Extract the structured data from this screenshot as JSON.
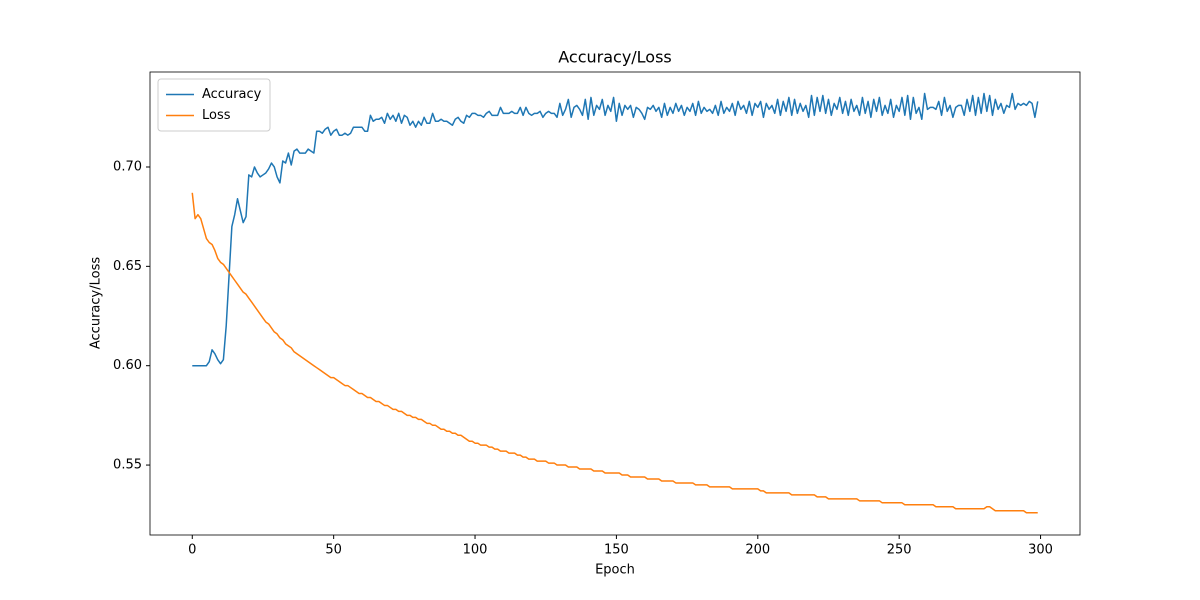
{
  "chart_data": {
    "type": "line",
    "title": "Accuracy/Loss",
    "x_label": "Epoch",
    "y_label": "Accuracy/Loss",
    "x": [
      0,
      1,
      2,
      3,
      4,
      5,
      6,
      7,
      8,
      9,
      10,
      11,
      12,
      13,
      14,
      15,
      16,
      17,
      18,
      19,
      20,
      21,
      22,
      23,
      24,
      25,
      26,
      27,
      28,
      29,
      30,
      31,
      32,
      33,
      34,
      35,
      36,
      37,
      38,
      39,
      40,
      41,
      42,
      43,
      44,
      45,
      46,
      47,
      48,
      49,
      50,
      51,
      52,
      53,
      54,
      55,
      56,
      57,
      58,
      59,
      60,
      61,
      62,
      63,
      64,
      65,
      66,
      67,
      68,
      69,
      70,
      71,
      72,
      73,
      74,
      75,
      76,
      77,
      78,
      79,
      80,
      81,
      82,
      83,
      84,
      85,
      86,
      87,
      88,
      89,
      90,
      91,
      92,
      93,
      94,
      95,
      96,
      97,
      98,
      99,
      100,
      101,
      102,
      103,
      104,
      105,
      106,
      107,
      108,
      109,
      110,
      111,
      112,
      113,
      114,
      115,
      116,
      117,
      118,
      119,
      120,
      121,
      122,
      123,
      124,
      125,
      126,
      127,
      128,
      129,
      130,
      131,
      132,
      133,
      134,
      135,
      136,
      137,
      138,
      139,
      140,
      141,
      142,
      143,
      144,
      145,
      146,
      147,
      148,
      149,
      150,
      151,
      152,
      153,
      154,
      155,
      156,
      157,
      158,
      159,
      160,
      161,
      162,
      163,
      164,
      165,
      166,
      167,
      168,
      169,
      170,
      171,
      172,
      173,
      174,
      175,
      176,
      177,
      178,
      179,
      180,
      181,
      182,
      183,
      184,
      185,
      186,
      187,
      188,
      189,
      190,
      191,
      192,
      193,
      194,
      195,
      196,
      197,
      198,
      199,
      200,
      201,
      202,
      203,
      204,
      205,
      206,
      207,
      208,
      209,
      210,
      211,
      212,
      213,
      214,
      215,
      216,
      217,
      218,
      219,
      220,
      221,
      222,
      223,
      224,
      225,
      226,
      227,
      228,
      229,
      230,
      231,
      232,
      233,
      234,
      235,
      236,
      237,
      238,
      239,
      240,
      241,
      242,
      243,
      244,
      245,
      246,
      247,
      248,
      249,
      250,
      251,
      252,
      253,
      254,
      255,
      256,
      257,
      258,
      259,
      260,
      261,
      262,
      263,
      264,
      265,
      266,
      267,
      268,
      269,
      270,
      271,
      272,
      273,
      274,
      275,
      276,
      277,
      278,
      279,
      280,
      281,
      282,
      283,
      284,
      285,
      286,
      287,
      288,
      289,
      290,
      291,
      292,
      293,
      294,
      295,
      296,
      297,
      298,
      299
    ],
    "series": [
      {
        "name": "Accuracy",
        "color": "#1f77b4",
        "values": [
          0.6,
          0.6,
          0.6,
          0.6,
          0.6,
          0.6,
          0.602,
          0.608,
          0.606,
          0.603,
          0.601,
          0.603,
          0.62,
          0.645,
          0.67,
          0.676,
          0.684,
          0.678,
          0.672,
          0.675,
          0.696,
          0.695,
          0.7,
          0.697,
          0.695,
          0.696,
          0.697,
          0.699,
          0.702,
          0.7,
          0.695,
          0.692,
          0.703,
          0.702,
          0.707,
          0.701,
          0.708,
          0.709,
          0.707,
          0.707,
          0.707,
          0.709,
          0.708,
          0.707,
          0.718,
          0.718,
          0.717,
          0.719,
          0.72,
          0.716,
          0.718,
          0.719,
          0.716,
          0.716,
          0.717,
          0.716,
          0.717,
          0.72,
          0.72,
          0.72,
          0.72,
          0.718,
          0.718,
          0.726,
          0.723,
          0.724,
          0.724,
          0.725,
          0.722,
          0.727,
          0.724,
          0.726,
          0.723,
          0.727,
          0.722,
          0.726,
          0.725,
          0.721,
          0.723,
          0.72,
          0.723,
          0.721,
          0.725,
          0.722,
          0.722,
          0.727,
          0.723,
          0.723,
          0.724,
          0.723,
          0.723,
          0.722,
          0.721,
          0.724,
          0.725,
          0.723,
          0.722,
          0.726,
          0.725,
          0.727,
          0.727,
          0.726,
          0.726,
          0.725,
          0.727,
          0.728,
          0.726,
          0.726,
          0.726,
          0.73,
          0.727,
          0.727,
          0.727,
          0.728,
          0.727,
          0.727,
          0.73,
          0.726,
          0.73,
          0.727,
          0.726,
          0.727,
          0.727,
          0.728,
          0.725,
          0.727,
          0.728,
          0.727,
          0.727,
          0.725,
          0.732,
          0.726,
          0.729,
          0.734,
          0.725,
          0.73,
          0.731,
          0.729,
          0.726,
          0.734,
          0.724,
          0.735,
          0.726,
          0.731,
          0.729,
          0.734,
          0.726,
          0.731,
          0.728,
          0.735,
          0.723,
          0.732,
          0.726,
          0.731,
          0.729,
          0.731,
          0.725,
          0.73,
          0.729,
          0.727,
          0.724,
          0.73,
          0.729,
          0.731,
          0.728,
          0.73,
          0.725,
          0.732,
          0.726,
          0.73,
          0.727,
          0.732,
          0.728,
          0.731,
          0.726,
          0.73,
          0.728,
          0.732,
          0.726,
          0.733,
          0.727,
          0.73,
          0.728,
          0.729,
          0.727,
          0.731,
          0.726,
          0.733,
          0.727,
          0.73,
          0.728,
          0.732,
          0.726,
          0.733,
          0.729,
          0.731,
          0.727,
          0.733,
          0.726,
          0.732,
          0.73,
          0.733,
          0.725,
          0.732,
          0.729,
          0.731,
          0.727,
          0.734,
          0.726,
          0.733,
          0.728,
          0.735,
          0.726,
          0.734,
          0.727,
          0.732,
          0.728,
          0.731,
          0.725,
          0.736,
          0.726,
          0.735,
          0.728,
          0.736,
          0.727,
          0.734,
          0.726,
          0.732,
          0.729,
          0.735,
          0.727,
          0.733,
          0.726,
          0.734,
          0.728,
          0.731,
          0.726,
          0.735,
          0.727,
          0.733,
          0.725,
          0.734,
          0.728,
          0.735,
          0.726,
          0.731,
          0.727,
          0.734,
          0.725,
          0.731,
          0.728,
          0.735,
          0.726,
          0.736,
          0.724,
          0.735,
          0.727,
          0.73,
          0.724,
          0.737,
          0.729,
          0.73,
          0.73,
          0.729,
          0.733,
          0.726,
          0.735,
          0.728,
          0.731,
          0.725,
          0.73,
          0.731,
          0.731,
          0.726,
          0.734,
          0.728,
          0.736,
          0.726,
          0.735,
          0.727,
          0.737,
          0.728,
          0.736,
          0.726,
          0.734,
          0.729,
          0.732,
          0.727,
          0.731,
          0.73,
          0.737,
          0.729,
          0.732,
          0.731,
          0.732,
          0.731,
          0.733,
          0.732,
          0.725,
          0.733
        ]
      },
      {
        "name": "Loss",
        "color": "#ff7f0e",
        "values": [
          0.687,
          0.674,
          0.676,
          0.674,
          0.669,
          0.664,
          0.662,
          0.661,
          0.658,
          0.654,
          0.652,
          0.651,
          0.649,
          0.647,
          0.645,
          0.643,
          0.641,
          0.639,
          0.637,
          0.636,
          0.634,
          0.632,
          0.63,
          0.628,
          0.626,
          0.624,
          0.622,
          0.621,
          0.619,
          0.617,
          0.616,
          0.614,
          0.613,
          0.611,
          0.61,
          0.609,
          0.607,
          0.606,
          0.605,
          0.604,
          0.603,
          0.602,
          0.601,
          0.6,
          0.599,
          0.598,
          0.597,
          0.596,
          0.595,
          0.594,
          0.594,
          0.593,
          0.592,
          0.591,
          0.59,
          0.59,
          0.589,
          0.588,
          0.587,
          0.586,
          0.586,
          0.585,
          0.584,
          0.584,
          0.583,
          0.582,
          0.582,
          0.581,
          0.58,
          0.58,
          0.579,
          0.578,
          0.578,
          0.577,
          0.577,
          0.576,
          0.575,
          0.575,
          0.574,
          0.574,
          0.573,
          0.573,
          0.572,
          0.571,
          0.571,
          0.57,
          0.57,
          0.569,
          0.568,
          0.568,
          0.567,
          0.567,
          0.566,
          0.566,
          0.565,
          0.565,
          0.564,
          0.563,
          0.562,
          0.562,
          0.561,
          0.561,
          0.56,
          0.56,
          0.56,
          0.559,
          0.559,
          0.558,
          0.558,
          0.557,
          0.557,
          0.557,
          0.556,
          0.556,
          0.556,
          0.555,
          0.555,
          0.554,
          0.554,
          0.553,
          0.553,
          0.553,
          0.552,
          0.552,
          0.552,
          0.552,
          0.551,
          0.551,
          0.551,
          0.55,
          0.55,
          0.55,
          0.55,
          0.549,
          0.549,
          0.549,
          0.549,
          0.548,
          0.548,
          0.548,
          0.548,
          0.548,
          0.547,
          0.547,
          0.547,
          0.547,
          0.546,
          0.546,
          0.546,
          0.546,
          0.546,
          0.546,
          0.545,
          0.545,
          0.545,
          0.544,
          0.544,
          0.544,
          0.544,
          0.544,
          0.544,
          0.543,
          0.543,
          0.543,
          0.543,
          0.543,
          0.542,
          0.542,
          0.542,
          0.542,
          0.542,
          0.541,
          0.541,
          0.541,
          0.541,
          0.541,
          0.541,
          0.541,
          0.54,
          0.54,
          0.54,
          0.54,
          0.54,
          0.539,
          0.539,
          0.539,
          0.539,
          0.539,
          0.539,
          0.539,
          0.539,
          0.538,
          0.538,
          0.538,
          0.538,
          0.538,
          0.538,
          0.538,
          0.538,
          0.538,
          0.538,
          0.537,
          0.537,
          0.536,
          0.536,
          0.536,
          0.536,
          0.536,
          0.536,
          0.536,
          0.536,
          0.536,
          0.535,
          0.535,
          0.535,
          0.535,
          0.535,
          0.535,
          0.535,
          0.535,
          0.535,
          0.534,
          0.534,
          0.534,
          0.534,
          0.533,
          0.533,
          0.533,
          0.533,
          0.533,
          0.533,
          0.533,
          0.533,
          0.533,
          0.533,
          0.533,
          0.532,
          0.532,
          0.532,
          0.532,
          0.532,
          0.532,
          0.532,
          0.532,
          0.531,
          0.531,
          0.531,
          0.531,
          0.531,
          0.531,
          0.531,
          0.531,
          0.53,
          0.53,
          0.53,
          0.53,
          0.53,
          0.53,
          0.53,
          0.53,
          0.53,
          0.53,
          0.53,
          0.529,
          0.529,
          0.529,
          0.529,
          0.529,
          0.529,
          0.529,
          0.528,
          0.528,
          0.528,
          0.528,
          0.528,
          0.528,
          0.528,
          0.528,
          0.528,
          0.528,
          0.528,
          0.529,
          0.529,
          0.528,
          0.527,
          0.527,
          0.527,
          0.527,
          0.527,
          0.527,
          0.527,
          0.527,
          0.527,
          0.527,
          0.527,
          0.526,
          0.526,
          0.526,
          0.526,
          0.526
        ]
      }
    ],
    "xlim": [
      -14.95,
      313.95
    ],
    "xticks": [
      0,
      50,
      100,
      150,
      200,
      250,
      300
    ],
    "ylim": [
      0.5148,
      0.7478
    ],
    "yticks": [
      0.55,
      {
        "value": 0.6,
        "label": "0.60"
      },
      0.65,
      {
        "value": 0.7,
        "label": "0.70"
      }
    ],
    "grid": false,
    "legend": "upper left"
  }
}
